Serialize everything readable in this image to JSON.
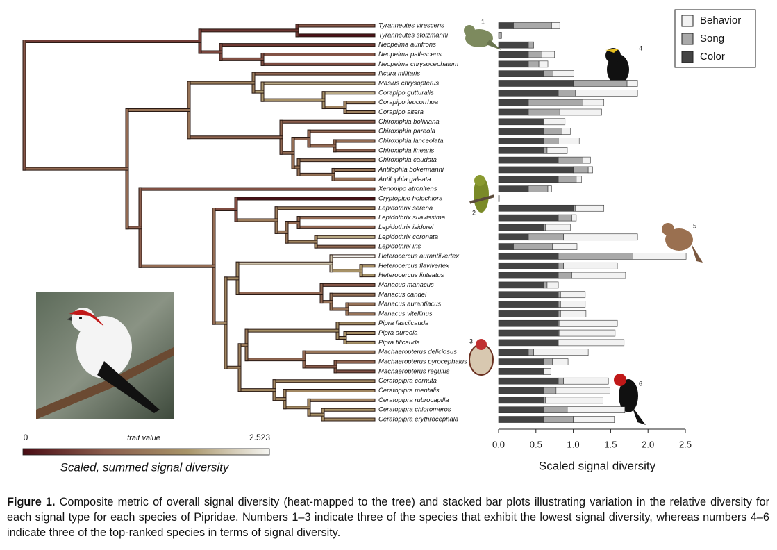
{
  "chart_data": [
    {
      "type": "stacked-barh",
      "categories": [
        "Tyranneutes virescens",
        "Tyranneutes stolzmanni",
        "Neopelma aurifrons",
        "Neopelma pallescens",
        "Neopelma chrysocephalum",
        "Ilicura militaris",
        "Masius chrysopterus",
        "Corapipo gutturalis",
        "Corapipo leucorrhoa",
        "Corapipo altera",
        "Chiroxiphia boliviana",
        "Chiroxiphia pareola",
        "Chiroxiphia lanceolata",
        "Chiroxiphia linearis",
        "Chiroxiphia caudata",
        "Antilophia bokermanni",
        "Antilophia galeata",
        "Xenopipo atronitens",
        "Cryptopipo holochlora",
        "Lepidothrix serena",
        "Lepidothrix suavissima",
        "Lepidothrix isidorei",
        "Lepidothrix coronata",
        "Lepidothrix iris",
        "Heterocercus aurantiivertex",
        "Heterocercus flavivertex",
        "Heterocercus linteatus",
        "Manacus manacus",
        "Manacus candei",
        "Manacus aurantiacus",
        "Manacus vitellinus",
        "Pipra fasciicauda",
        "Pipra aureola",
        "Pipra filicauda",
        "Machaeropterus deliciosus",
        "Machaeropterus pyrocephalus",
        "Machaeropterus regulus",
        "Ceratopipra cornuta",
        "Ceratopipra mentalis",
        "Ceratopipra rubrocapilla",
        "Ceratopipra chloromeros",
        "Ceratopipra erythrocephala"
      ],
      "series": [
        {
          "name": "Color",
          "color": "#444444",
          "values": [
            0.2,
            0,
            0.4,
            0.4,
            0.4,
            0.6,
            1.0,
            0.8,
            0.4,
            0.4,
            0.6,
            0.6,
            0.6,
            0.6,
            0.8,
            1.0,
            0.8,
            0.4,
            0,
            1.0,
            0.8,
            0.6,
            0.4,
            0.2,
            0.8,
            0.8,
            0.8,
            0.6,
            0.8,
            0.8,
            0.8,
            0.8,
            0.8,
            0.8,
            0.4,
            0.6,
            0.6,
            0.8,
            0.6,
            0.6,
            0.6,
            0.6
          ]
        },
        {
          "name": "Song",
          "color": "#a9a9a9",
          "values": [
            0.51,
            0.04,
            0.07,
            0.18,
            0.14,
            0.13,
            0.72,
            0.23,
            0.73,
            0.42,
            0,
            0.25,
            0.2,
            0.05,
            0.33,
            0.2,
            0.24,
            0.26,
            0,
            0.03,
            0.18,
            0.03,
            0.47,
            0.52,
            1.0,
            0.07,
            0.18,
            0.05,
            0.03,
            0.03,
            0.03,
            0.02,
            0.01,
            0,
            0.07,
            0.12,
            0.01,
            0.07,
            0.17,
            0.03,
            0.32,
            0.4
          ]
        },
        {
          "name": "Behavior",
          "color": "#f2f2f2",
          "values": [
            0.11,
            0,
            0,
            0.17,
            0.12,
            0.28,
            0.14,
            0.83,
            0.28,
            0.56,
            0.29,
            0.11,
            0.28,
            0.27,
            0.1,
            0.06,
            0.07,
            0.05,
            0.01,
            0.38,
            0.06,
            0.33,
            0.99,
            0.33,
            0.71,
            0.72,
            0.72,
            0.15,
            0.33,
            0.33,
            0.34,
            0.77,
            0.75,
            0.88,
            0.73,
            0.21,
            0.09,
            0.6,
            0.72,
            0.77,
            0.77,
            0.55
          ]
        }
      ],
      "xlim": [
        0,
        2.5
      ],
      "xticks": [
        {
          "value": 0,
          "label": "0.0"
        },
        0.5,
        {
          "value": 1,
          "label": "1.0"
        },
        1.5,
        {
          "value": 2,
          "label": "2.0"
        },
        2.5
      ],
      "xlabel": "Scaled signal diversity",
      "legend": "upper right",
      "annotations": [
        "1",
        "2",
        "3",
        "4",
        "5",
        "6"
      ]
    },
    {
      "type": "colorbar",
      "title": "Scaled, summed signal diversity",
      "label": "trait value",
      "lim": [
        0,
        2.523
      ],
      "ticks": [
        0,
        2.523
      ],
      "colors": [
        "#4a0c14",
        "#8a5c4c",
        "#a89468",
        "#f6f6f2"
      ]
    }
  ],
  "caption": {
    "label": "Figure 1.",
    "text": "Composite metric of overall signal diversity (heat-mapped to the tree) and stacked bar plots illustrating variation in the relative diversity for each signal type for each species of Pipridae. Numbers 1–3 indicate three of the species that exhibit the lowest signal diversity, whereas numbers 4–6 indicate three of the top-ranked species in terms of signal diversity."
  }
}
